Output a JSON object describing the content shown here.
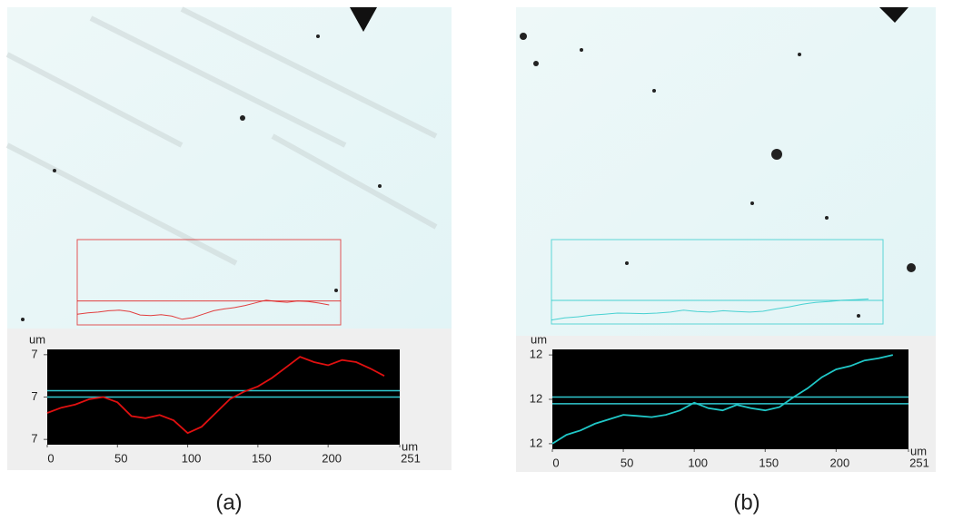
{
  "chart_data": [
    {
      "type": "line",
      "caption": "(a)",
      "x_label": "um",
      "y_label": "um",
      "x": [
        0,
        10,
        20,
        30,
        40,
        50,
        60,
        70,
        80,
        90,
        100,
        110,
        120,
        130,
        140,
        150,
        160,
        170,
        180,
        190,
        200,
        210,
        220,
        230,
        240
      ],
      "series": [
        {
          "color": "#e01010",
          "values": [
            6.85,
            6.9,
            6.93,
            6.98,
            7.0,
            6.95,
            6.82,
            6.8,
            6.83,
            6.78,
            6.66,
            6.72,
            6.85,
            6.98,
            7.05,
            7.1,
            7.18,
            7.28,
            7.38,
            7.33,
            7.3,
            7.35,
            7.33,
            7.27,
            7.2
          ]
        }
      ],
      "reference_lines": [
        7.06,
        7.0
      ],
      "reference_color": "#30c8d0",
      "xlim": [
        0,
        251
      ],
      "xticks": [
        0,
        50,
        100,
        150,
        200,
        251
      ],
      "ylim": [
        6.55,
        7.45
      ],
      "yticks": [
        {
          "value": 7.4,
          "label": "7"
        },
        {
          "value": 7.0,
          "label": "7"
        },
        {
          "value": 6.6,
          "label": "7"
        }
      ]
    },
    {
      "type": "line",
      "caption": "(b)",
      "x_label": "um",
      "y_label": "um",
      "x": [
        0,
        10,
        20,
        30,
        40,
        50,
        60,
        70,
        80,
        90,
        100,
        110,
        120,
        130,
        140,
        150,
        160,
        170,
        180,
        190,
        200,
        210,
        220,
        230,
        240
      ],
      "series": [
        {
          "color": "#20c8c8",
          "values": [
            11.6,
            11.68,
            11.72,
            11.78,
            11.82,
            11.86,
            11.85,
            11.84,
            11.86,
            11.9,
            11.97,
            11.92,
            11.9,
            11.95,
            11.92,
            11.9,
            11.93,
            12.02,
            12.1,
            12.2,
            12.27,
            12.3,
            12.35,
            12.37,
            12.4
          ]
        }
      ],
      "reference_lines": [
        12.02,
        11.96
      ],
      "reference_color": "#30c8d0",
      "xlim": [
        0,
        251
      ],
      "xticks": [
        0,
        50,
        100,
        150,
        200,
        251
      ],
      "ylim": [
        11.55,
        12.45
      ],
      "yticks": [
        {
          "value": 12.4,
          "label": "12"
        },
        {
          "value": 12.0,
          "label": "12"
        },
        {
          "value": 11.6,
          "label": "12"
        }
      ]
    }
  ]
}
